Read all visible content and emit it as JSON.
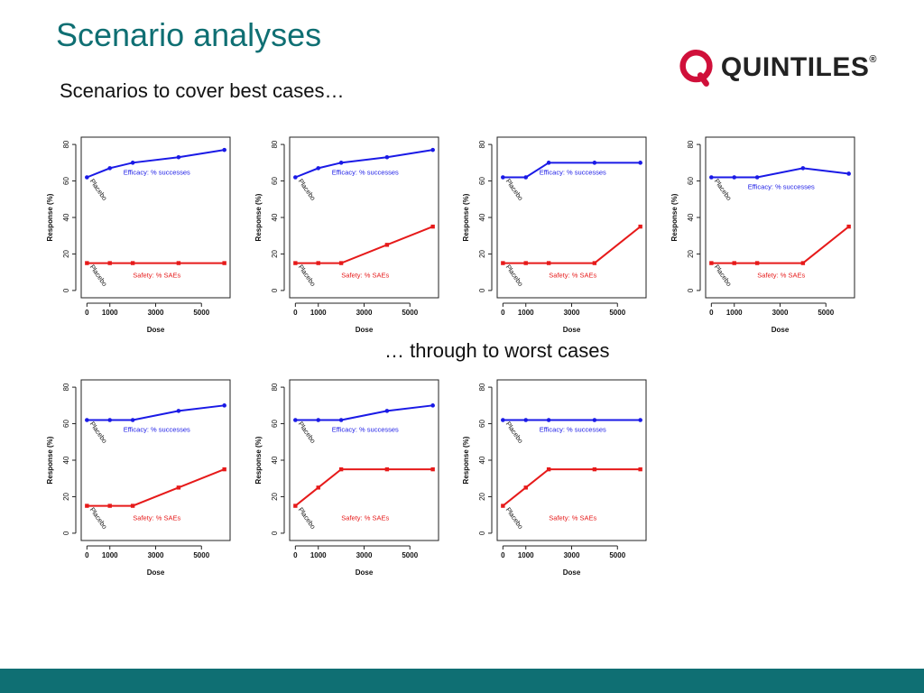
{
  "slide": {
    "title": "Scenario analyses",
    "subtitle": "Scenarios to cover best cases…",
    "mid_caption": "… through to worst cases",
    "logo_text": "QUINTILES",
    "logo_mark": "®",
    "title_color": "#0f6f73",
    "footer_color": "#0f6f73"
  },
  "chart_data": [
    {
      "type": "line",
      "x": [
        0,
        1000,
        2000,
        4000,
        6000
      ],
      "xticks": [
        0,
        1000,
        3000,
        5000
      ],
      "yticks": [
        0,
        20,
        40,
        60,
        80
      ],
      "xlim": [
        -250,
        6250
      ],
      "ylim": [
        -4,
        84
      ],
      "xlabel": "Dose",
      "ylabel": "Response (%)",
      "series": [
        {
          "name": "Efficacy: % successes",
          "color": "#1a1ae6",
          "values": [
            62,
            67,
            70,
            73,
            77
          ]
        },
        {
          "name": "Safety: % SAEs",
          "color": "#e61a1a",
          "values": [
            15,
            15,
            15,
            15,
            15
          ]
        }
      ],
      "annotations": [
        "Placebo",
        "Placebo"
      ]
    },
    {
      "type": "line",
      "x": [
        0,
        1000,
        2000,
        4000,
        6000
      ],
      "xticks": [
        0,
        1000,
        3000,
        5000
      ],
      "yticks": [
        0,
        20,
        40,
        60,
        80
      ],
      "xlim": [
        -250,
        6250
      ],
      "ylim": [
        -4,
        84
      ],
      "xlabel": "Dose",
      "ylabel": "Response (%)",
      "series": [
        {
          "name": "Efficacy: % successes",
          "color": "#1a1ae6",
          "values": [
            62,
            67,
            70,
            73,
            77
          ]
        },
        {
          "name": "Safety: % SAEs",
          "color": "#e61a1a",
          "values": [
            15,
            15,
            15,
            25,
            35
          ]
        }
      ],
      "annotations": [
        "Placebo",
        "Placebo"
      ]
    },
    {
      "type": "line",
      "x": [
        0,
        1000,
        2000,
        4000,
        6000
      ],
      "xticks": [
        0,
        1000,
        3000,
        5000
      ],
      "yticks": [
        0,
        20,
        40,
        60,
        80
      ],
      "xlim": [
        -250,
        6250
      ],
      "ylim": [
        -4,
        84
      ],
      "xlabel": "Dose",
      "ylabel": "Response (%)",
      "series": [
        {
          "name": "Efficacy: % successes",
          "color": "#1a1ae6",
          "values": [
            62,
            62,
            70,
            70,
            70
          ]
        },
        {
          "name": "Safety: % SAEs",
          "color": "#e61a1a",
          "values": [
            15,
            15,
            15,
            15,
            35
          ]
        }
      ],
      "annotations": [
        "Placebo",
        "Placebo"
      ]
    },
    {
      "type": "line",
      "x": [
        0,
        1000,
        2000,
        4000,
        6000
      ],
      "xticks": [
        0,
        1000,
        3000,
        5000
      ],
      "yticks": [
        0,
        20,
        40,
        60,
        80
      ],
      "xlim": [
        -250,
        6250
      ],
      "ylim": [
        -4,
        84
      ],
      "xlabel": "Dose",
      "ylabel": "Response (%)",
      "series": [
        {
          "name": "Efficacy: % successes",
          "color": "#1a1ae6",
          "values": [
            62,
            62,
            62,
            67,
            64
          ]
        },
        {
          "name": "Safety: % SAEs",
          "color": "#e61a1a",
          "values": [
            15,
            15,
            15,
            15,
            35
          ]
        }
      ],
      "annotations": [
        "Placebo",
        "Placebo"
      ]
    },
    {
      "type": "line",
      "x": [
        0,
        1000,
        2000,
        4000,
        6000
      ],
      "xticks": [
        0,
        1000,
        3000,
        5000
      ],
      "yticks": [
        0,
        20,
        40,
        60,
        80
      ],
      "xlim": [
        -250,
        6250
      ],
      "ylim": [
        -4,
        84
      ],
      "xlabel": "Dose",
      "ylabel": "Response (%)",
      "series": [
        {
          "name": "Efficacy: % successes",
          "color": "#1a1ae6",
          "values": [
            62,
            62,
            62,
            67,
            70
          ]
        },
        {
          "name": "Safety: % SAEs",
          "color": "#e61a1a",
          "values": [
            15,
            15,
            15,
            25,
            35
          ]
        }
      ],
      "annotations": [
        "Placebo",
        "Placebo"
      ]
    },
    {
      "type": "line",
      "x": [
        0,
        1000,
        2000,
        4000,
        6000
      ],
      "xticks": [
        0,
        1000,
        3000,
        5000
      ],
      "yticks": [
        0,
        20,
        40,
        60,
        80
      ],
      "xlim": [
        -250,
        6250
      ],
      "ylim": [
        -4,
        84
      ],
      "xlabel": "Dose",
      "ylabel": "Response (%)",
      "series": [
        {
          "name": "Efficacy: % successes",
          "color": "#1a1ae6",
          "values": [
            62,
            62,
            62,
            67,
            70
          ]
        },
        {
          "name": "Safety: % SAEs",
          "color": "#e61a1a",
          "values": [
            15,
            25,
            35,
            35,
            35
          ]
        }
      ],
      "annotations": [
        "Placebo",
        "Placebo"
      ]
    },
    {
      "type": "line",
      "x": [
        0,
        1000,
        2000,
        4000,
        6000
      ],
      "xticks": [
        0,
        1000,
        3000,
        5000
      ],
      "yticks": [
        0,
        20,
        40,
        60,
        80
      ],
      "xlim": [
        -250,
        6250
      ],
      "ylim": [
        -4,
        84
      ],
      "xlabel": "Dose",
      "ylabel": "Response (%)",
      "series": [
        {
          "name": "Efficacy: % successes",
          "color": "#1a1ae6",
          "values": [
            62,
            62,
            62,
            62,
            62
          ]
        },
        {
          "name": "Safety: % SAEs",
          "color": "#e61a1a",
          "values": [
            15,
            25,
            35,
            35,
            35
          ]
        }
      ],
      "annotations": [
        "Placebo",
        "Placebo"
      ]
    }
  ]
}
